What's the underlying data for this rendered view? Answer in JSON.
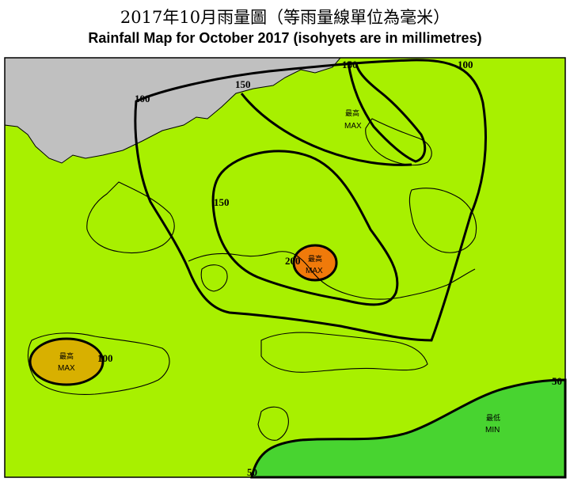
{
  "title": {
    "chinese": "2017年10月雨量圖（等雨量線單位為毫米）",
    "english": "Rainfall Map for October 2017 (isohyets are in millimetres)"
  },
  "map": {
    "unit": "millimetres",
    "colors": {
      "background_land": "#a8f000",
      "zone_100": "#d8b000",
      "zone_150": "#ffd700",
      "zone_200": "#f07a0a",
      "zone_below_50": "#48d430",
      "outside_area": "#c0c0c0"
    },
    "isohyet_labels": {
      "label_100_west": "100",
      "label_150_north": "150",
      "label_150_ne": "150",
      "label_100_ne": "100",
      "label_150_west": "150",
      "label_200": "200",
      "label_100_lantau": "100",
      "label_50_east": "50",
      "label_50_south": "50"
    },
    "markers": {
      "max_ne": {
        "zh": "最高",
        "en": "MAX"
      },
      "max_center": {
        "zh": "最高",
        "en": "MAX"
      },
      "max_lantau": {
        "zh": "最高",
        "en": "MAX"
      },
      "min_se": {
        "zh": "最低",
        "en": "MIN"
      }
    }
  }
}
